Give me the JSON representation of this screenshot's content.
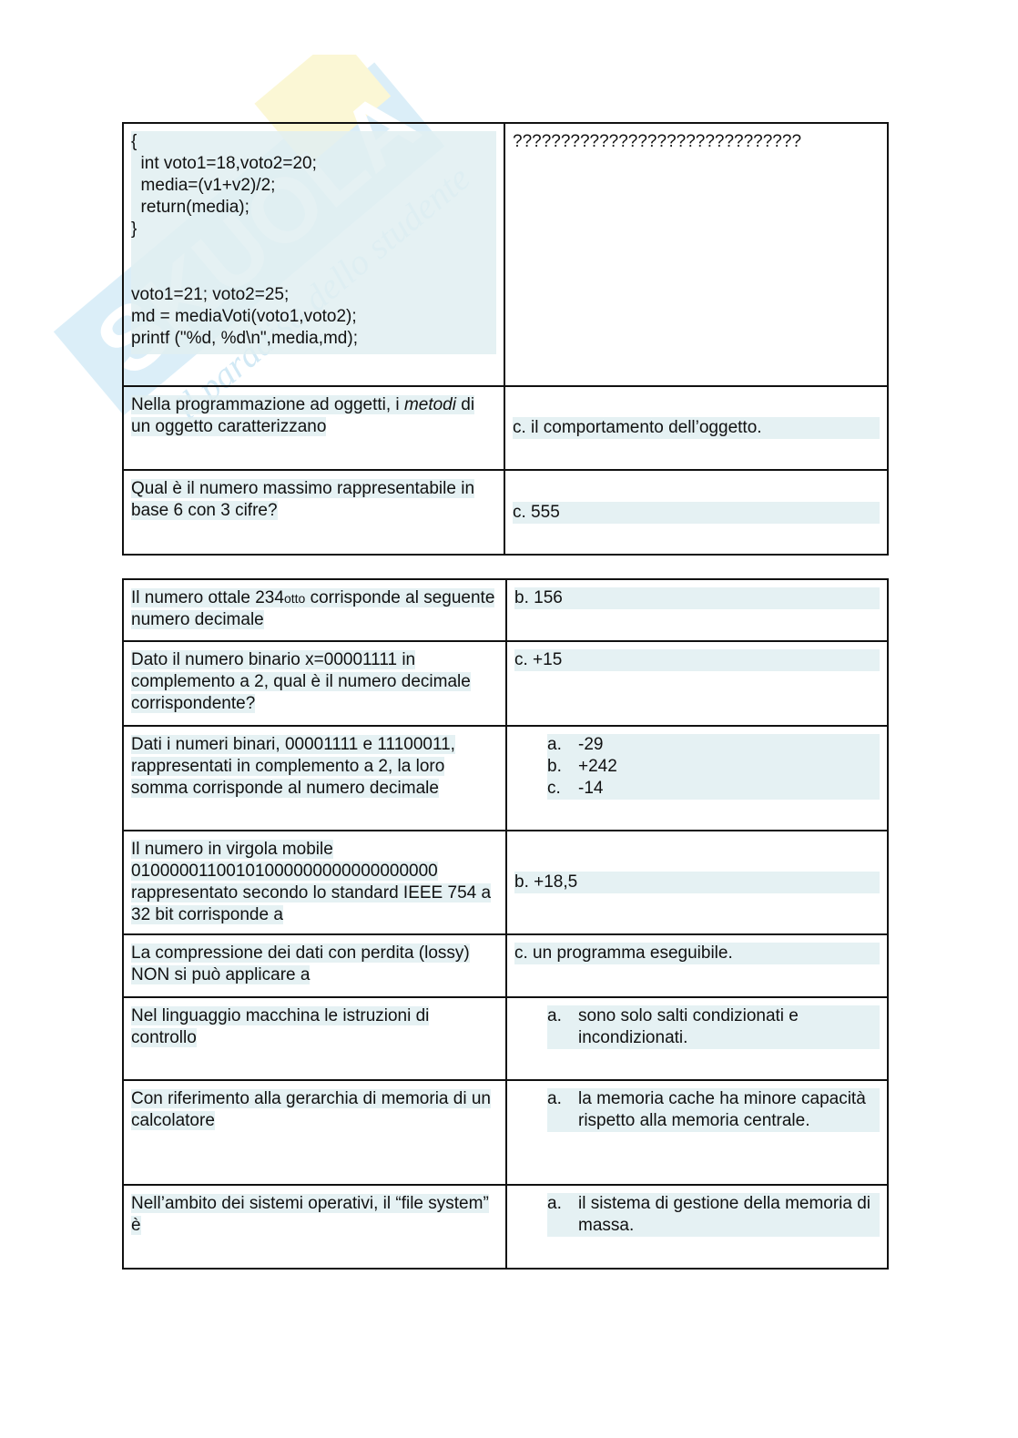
{
  "watermark": {
    "brand": "Skuola.net",
    "tagline": "il paradiso dello studente"
  },
  "table1": [
    {
      "question_code": [
        "{",
        "  int voto1=18,voto2=20;",
        "  media=(v1+v2)/2;",
        "  return(media);",
        "}",
        "",
        "",
        "voto1=21; voto2=25;",
        "md = mediaVoti(voto1,voto2);",
        "printf (\"%d, %d\\n\",media,md);"
      ],
      "answer": "??????????????????????????????"
    },
    {
      "question_pre": "Nella programmazione ad oggetti, i ",
      "question_em": "metodi",
      "question_post": " di un oggetto caratterizzano",
      "answer": "c.  il comportamento dell’oggetto."
    },
    {
      "question": "Qual è il numero massimo rappresentabile in base 6 con 3 cifre?",
      "answer": "c. 555"
    }
  ],
  "table2": [
    {
      "question_pre": "Il numero ottale 234",
      "question_sub": "otto",
      "question_post": " corrisponde al seguente numero decimale",
      "answer": "b. 156"
    },
    {
      "question": "Dato il numero binario x=00001111 in complemento a 2, qual è il numero decimale corrispondente?",
      "answer": "c. +15"
    },
    {
      "question": "Dati i numeri binari, 00001111 e 11100011, rappresentati in complemento a 2, la loro somma corrisponde al numero decimale",
      "options": [
        {
          "l": "a.",
          "t": "-29"
        },
        {
          "l": "b.",
          "t": "+242"
        },
        {
          "l": "c.",
          "t": "-14"
        }
      ]
    },
    {
      "question": "Il numero in virgola mobile 01000001100101000000000000000000 rappresentato secondo lo standard IEEE 754 a 32 bit corrisponde a",
      "answer": "b. +18,5"
    },
    {
      "question": "La compressione dei dati con perdita (lossy) NON si può applicare a",
      "answer": "c. un programma eseguibile."
    },
    {
      "question": "Nel linguaggio macchina le istruzioni di controllo",
      "options": [
        {
          "l": "a.",
          "t": "sono solo salti condizionati e incondizionati."
        }
      ]
    },
    {
      "question": "Con riferimento alla gerarchia di memoria di un calcolatore",
      "options": [
        {
          "l": "a.",
          "t": "la memoria cache ha minore capacità rispetto alla memoria centrale."
        }
      ]
    },
    {
      "question": "Nell’ambito dei sistemi operativi, il “file system” è",
      "options": [
        {
          "l": "a.",
          "t": "il sistema di gestione della memoria di massa."
        }
      ]
    }
  ]
}
